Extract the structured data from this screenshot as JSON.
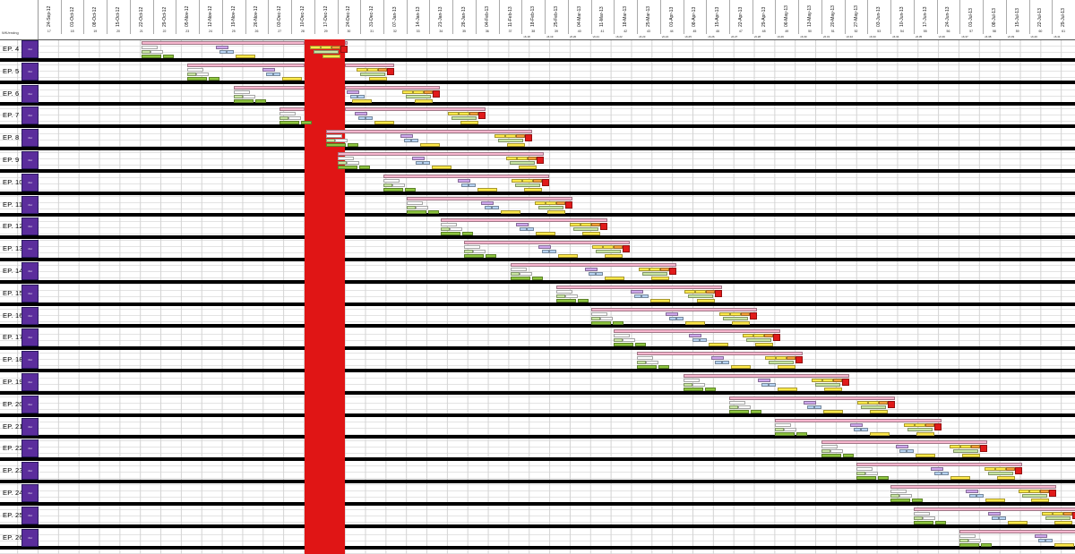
{
  "colors": {
    "pink": "#f4a6c6",
    "header_pink": "#f7b7cf",
    "yellow": "#ffe94a",
    "orange": "#f3a23a",
    "blue": "#b7d3f2",
    "green": "#8ec63f",
    "lightgreen": "#c9e6a3",
    "purple_block": "#cfa8ec",
    "red": "#e11a1a",
    "crimson": "#c3123a",
    "swatch": "#5b2d9c"
  },
  "corner_label": "WK/endng",
  "dates": [
    "24-Sep-12",
    "01-Oct-12",
    "08-Oct-12",
    "15-Oct-12",
    "22-Oct-12",
    "29-Oct-12",
    "05-Nov-12",
    "12-Nov-12",
    "19-Nov-12",
    "26-Nov-12",
    "03-Dec-12",
    "10-Dec-12",
    "17-Dec-12",
    "24-Dec-12",
    "31-Dec-12",
    "07-Jan-13",
    "14-Jan-13",
    "21-Jan-13",
    "28-Jan-13",
    "04-Feb-13",
    "11-Feb-13",
    "18-Feb-13",
    "25-Feb-13",
    "04-Mar-13",
    "11-Mar-13",
    "18-Mar-13",
    "25-Mar-13",
    "01-Apr-13",
    "08-Apr-13",
    "15-Apr-13",
    "22-Apr-13",
    "29-Apr-13",
    "06-May-13",
    "13-May-13",
    "20-May-13",
    "27-May-13",
    "03-Jun-13",
    "10-Jun-13",
    "17-Jun-13",
    "24-Jun-13",
    "01-Jul-13",
    "08-Jul-13",
    "15-Jul-13",
    "22-Jul-13",
    "29-Jul-13"
  ],
  "weeks": [
    "17",
    "18",
    "19",
    "20",
    "21",
    "22",
    "23",
    "24",
    "25",
    "26",
    "27",
    "28",
    "29",
    "30",
    "31",
    "32",
    "33",
    "34",
    "35",
    "36",
    "37",
    "38",
    "39",
    "40",
    "41",
    "42",
    "43",
    "44",
    "45",
    "46",
    "47",
    "48",
    "49",
    "50",
    "51",
    "52",
    "53",
    "54",
    "55",
    "56",
    "57",
    "58",
    "59",
    "60",
    "61"
  ],
  "versions": [
    "v6.18",
    "v6.19",
    "v6.20",
    "v6.21",
    "v6.22",
    "v6.23",
    "v6.24",
    "v6.25",
    "v6.26",
    "v6.27",
    "v6.28",
    "v6.29",
    "v6.30",
    "v6.31",
    "v6.32",
    "v6.33",
    "v6.34",
    "v6.35",
    "v6.36",
    "v6.37",
    "v6.38",
    "v6.39",
    "v6.40",
    "v6.41",
    "v6.42",
    "v6.43",
    "v6.44"
  ],
  "episodes": [
    {
      "label": "EP. 4",
      "swatch": "CH"
    },
    {
      "label": "EP. 5",
      "swatch": "CH"
    },
    {
      "label": "EP. 6",
      "swatch": "CH"
    },
    {
      "label": "EP. 7",
      "swatch": "CH"
    },
    {
      "label": "EP. 8",
      "swatch": "CH"
    },
    {
      "label": "EP. 9",
      "swatch": "CH"
    },
    {
      "label": "EP. 10",
      "swatch": "CH"
    },
    {
      "label": "EP. 11",
      "swatch": "CH"
    },
    {
      "label": "EP. 12",
      "swatch": "CH"
    },
    {
      "label": "EP. 13",
      "swatch": "CH"
    },
    {
      "label": "EP. 14",
      "swatch": "CH"
    },
    {
      "label": "EP. 15",
      "swatch": "CH"
    },
    {
      "label": "EP. 16",
      "swatch": "CH"
    },
    {
      "label": "EP. 17",
      "swatch": "CH"
    },
    {
      "label": "EP. 18",
      "swatch": "CH"
    },
    {
      "label": "EP. 19",
      "swatch": "CH"
    },
    {
      "label": "EP. 20",
      "swatch": "CH"
    },
    {
      "label": "EP. 21",
      "swatch": "CH"
    },
    {
      "label": "EP. 22",
      "swatch": "CH"
    },
    {
      "label": "EP. 23",
      "swatch": "CH"
    },
    {
      "label": "EP. 24",
      "swatch": "CH"
    },
    {
      "label": "EP. 25",
      "swatch": "CH"
    },
    {
      "label": "EP. 26",
      "swatch": "CH"
    }
  ],
  "episode_starts": [
    4.5,
    6.5,
    8.5,
    10.5,
    12.5,
    13.0,
    15.0,
    16.0,
    17.5,
    18.5,
    20.5,
    22.5,
    24.0,
    25.0,
    26.0,
    28.0,
    30.0,
    32.0,
    34.0,
    35.5,
    37.0,
    38.0,
    40.0
  ]
}
